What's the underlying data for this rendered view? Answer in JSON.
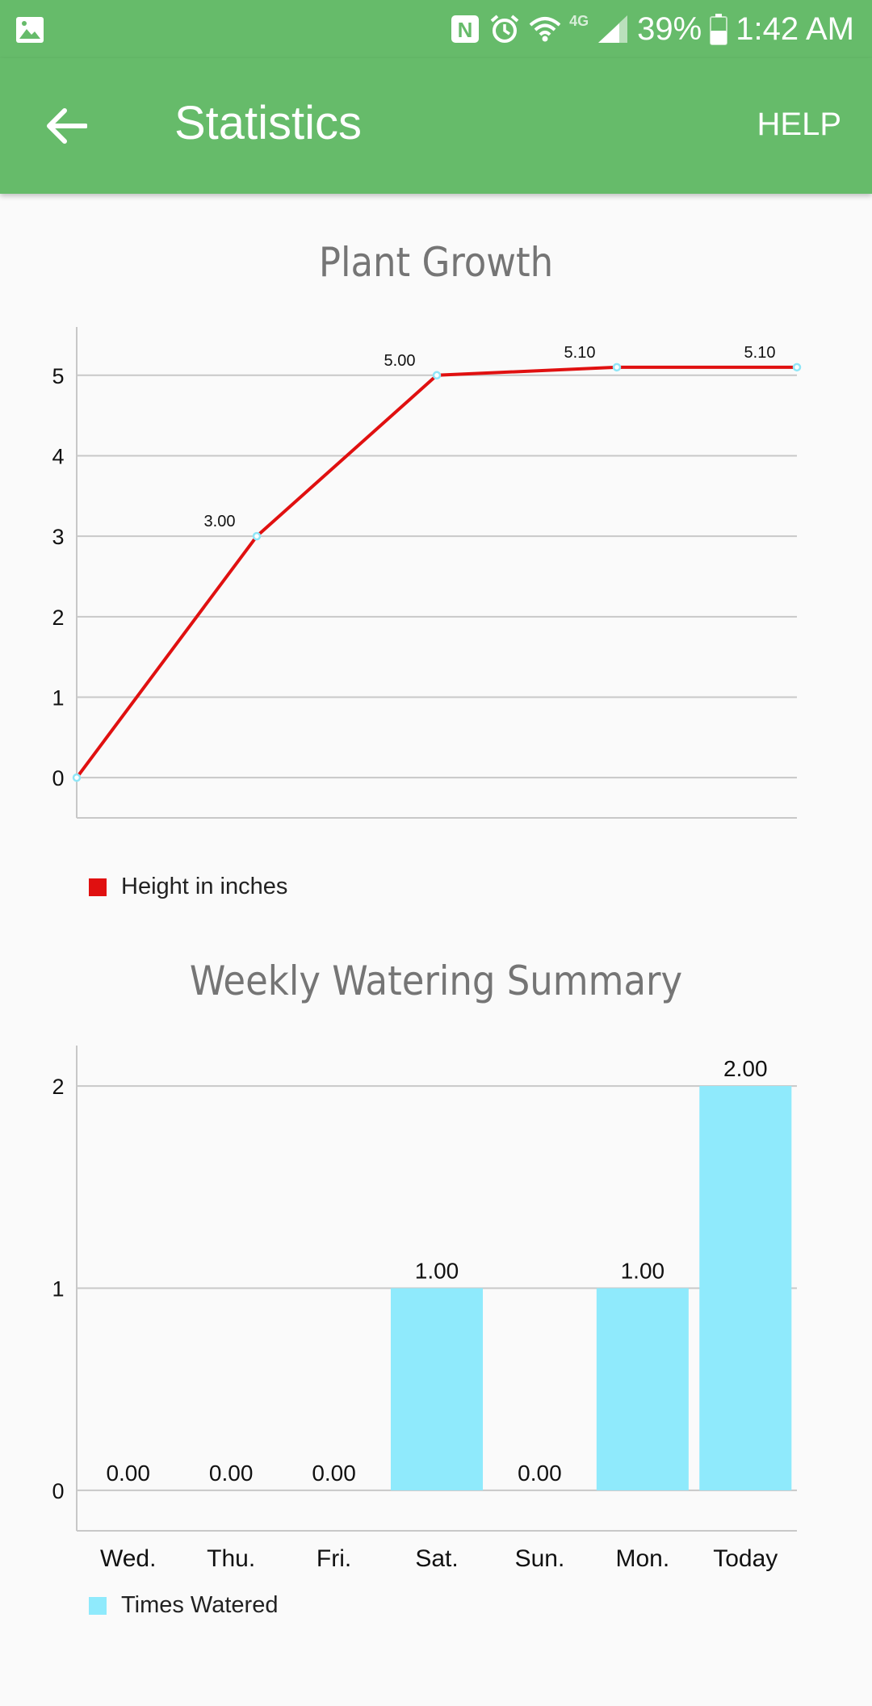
{
  "status_bar": {
    "battery_percent": "39%",
    "time": "1:42 AM",
    "network_label": "4G",
    "icons": [
      "image-icon",
      "nfc-icon",
      "alarm-icon",
      "wifi-icon",
      "signal-icon",
      "battery-icon"
    ]
  },
  "app_bar": {
    "title": "Statistics",
    "help_label": "HELP",
    "back_icon": "arrow-back-icon",
    "color": "#66bb6a"
  },
  "growth_chart": {
    "title": "Plant Growth",
    "legend_label": "Height in inches",
    "chart_data": {
      "type": "line",
      "x": [
        0,
        1,
        2,
        3,
        4
      ],
      "values": [
        0,
        3.0,
        5.0,
        5.1,
        5.1
      ],
      "data_labels": [
        "",
        "3.00",
        "5.00",
        "5.10",
        "5.10"
      ],
      "y_ticks": [
        "0",
        "1",
        "2",
        "3",
        "4",
        "5"
      ],
      "ylim": [
        -0.5,
        5.6
      ],
      "xlabel": "",
      "ylabel": "",
      "grid": true,
      "legend": "bottom-left",
      "line_color": "#e01010",
      "marker_color": "#8fe6f7"
    }
  },
  "watering_chart": {
    "title": "Weekly Watering Summary",
    "legend_label": "Times Watered",
    "chart_data": {
      "type": "bar",
      "categories": [
        "Wed.",
        "Thu.",
        "Fri.",
        "Sat.",
        "Sun.",
        "Mon.",
        "Today"
      ],
      "values": [
        0,
        0,
        0,
        1,
        0,
        1,
        2
      ],
      "data_labels": [
        "0.00",
        "0.00",
        "0.00",
        "1.00",
        "0.00",
        "1.00",
        "2.00"
      ],
      "y_ticks": [
        "0",
        "1",
        "2"
      ],
      "ylim": [
        -0.2,
        2.2
      ],
      "xlabel": "",
      "ylabel": "",
      "grid": true,
      "legend": "bottom-left",
      "bar_color": "#8feafc"
    }
  }
}
